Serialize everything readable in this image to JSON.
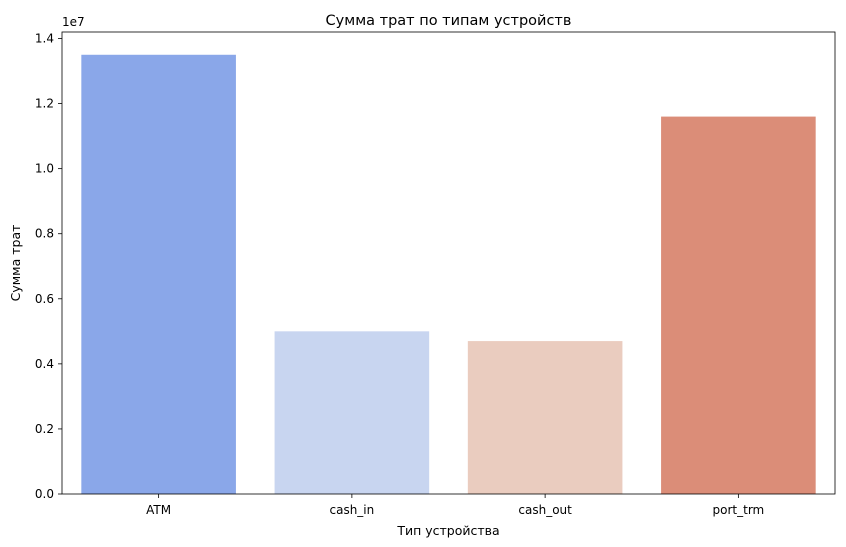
{
  "chart_data": {
    "type": "bar",
    "title": "Сумма трат по типам устройств",
    "xlabel": "Тип устройства",
    "ylabel": "Сумма трат",
    "y_offset_label": "1e7",
    "y_scale_factor": 10000000,
    "categories": [
      "ATM",
      "cash_in",
      "cash_out",
      "port_trm"
    ],
    "values": [
      13500000,
      5000000,
      4700000,
      11600000
    ],
    "colors": [
      "#8aa7e9",
      "#c8d5f0",
      "#eaccbf",
      "#db8d78"
    ],
    "ylim": [
      0,
      14200000
    ],
    "yticks": [
      0,
      2000000,
      4000000,
      6000000,
      8000000,
      10000000,
      12000000,
      14000000
    ],
    "ytick_labels": [
      "0.0",
      "0.2",
      "0.4",
      "0.6",
      "0.8",
      "1.0",
      "1.2",
      "1.4"
    ],
    "grid": false,
    "legend": "none"
  }
}
